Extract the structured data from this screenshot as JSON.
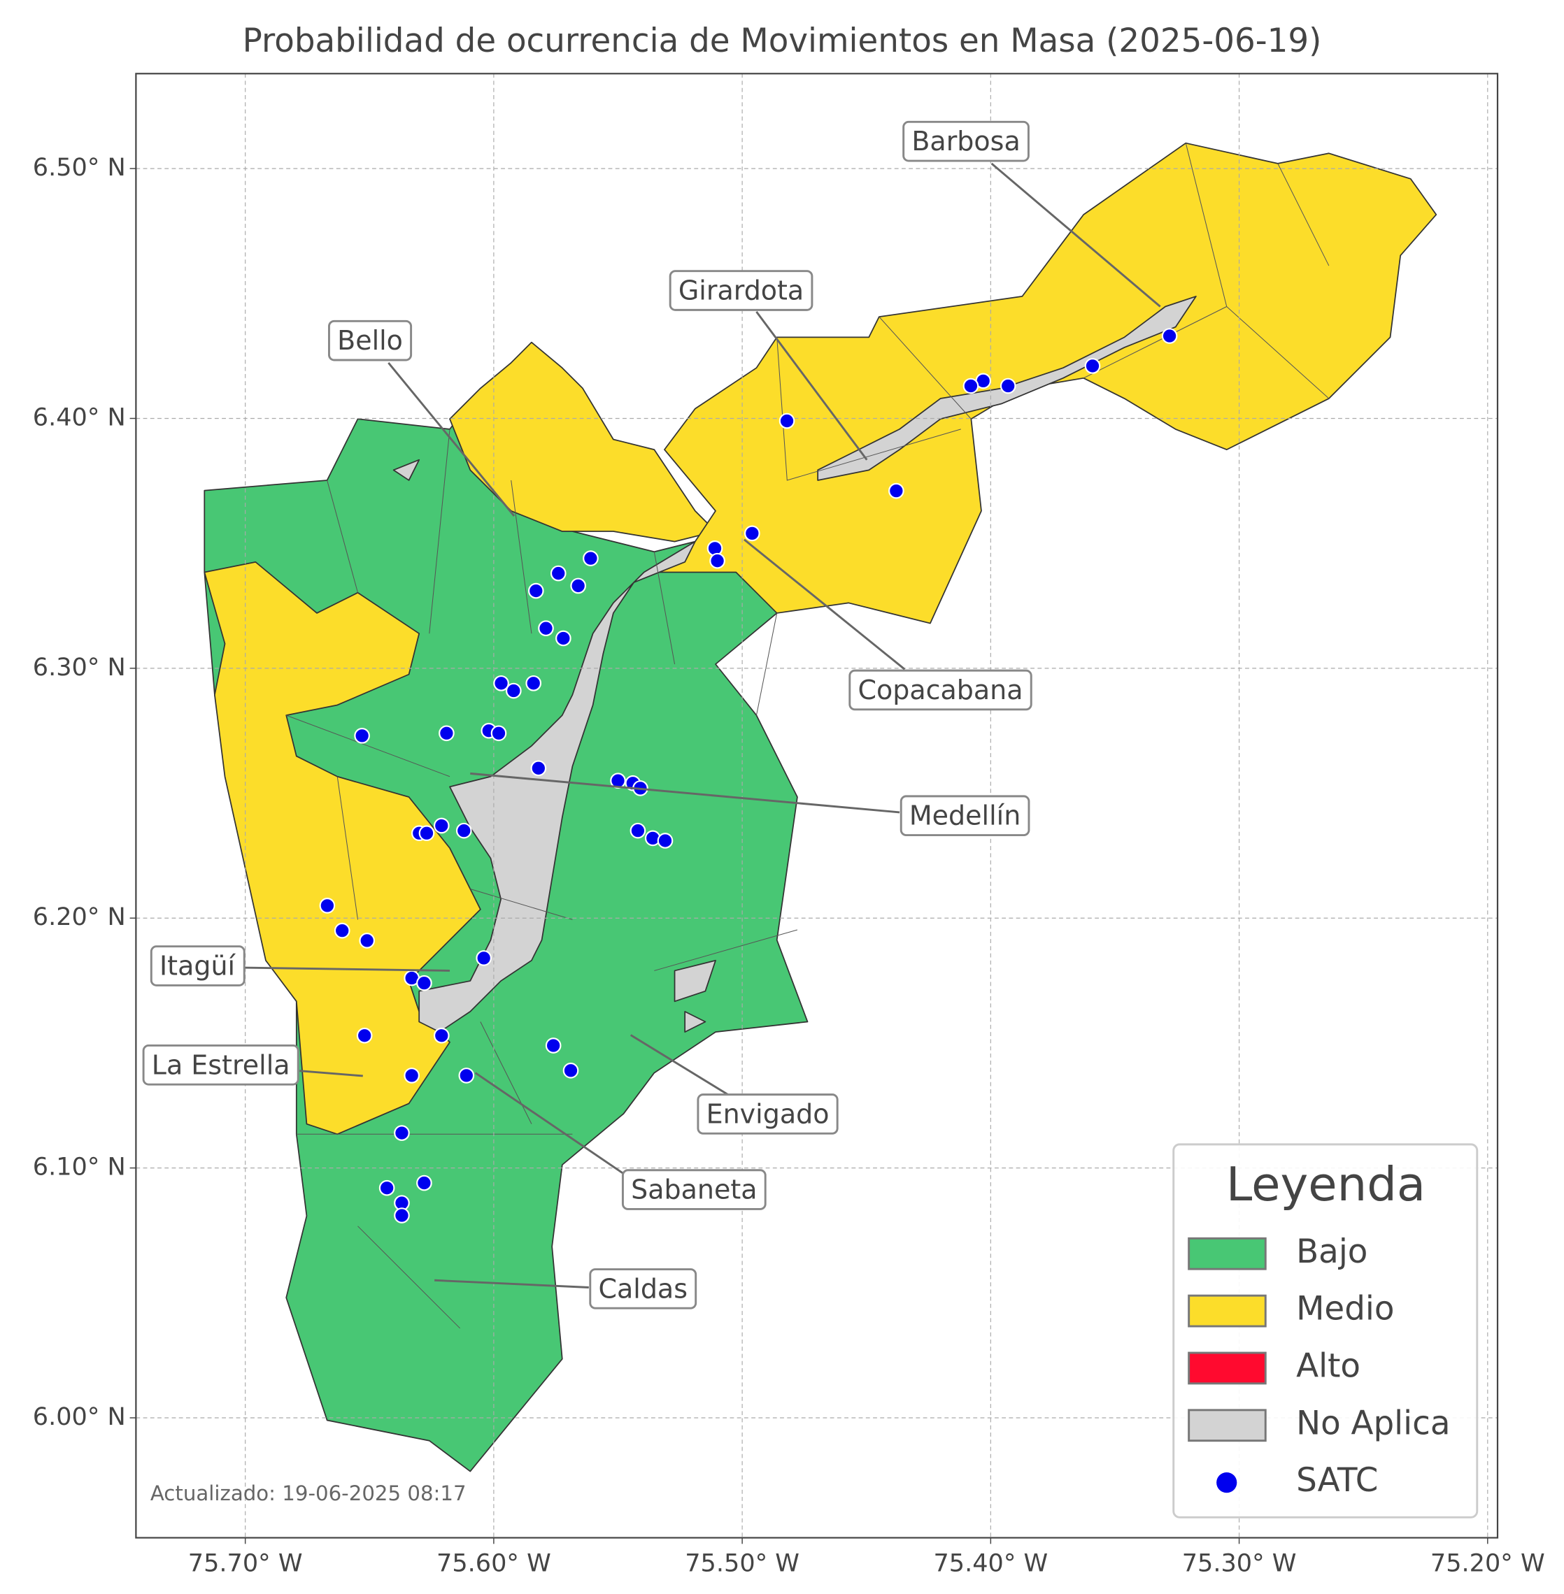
{
  "chart_data": {
    "type": "scatter",
    "title": "Probabilidad de ocurrencia de Movimientos en Masa (2025-06-19)",
    "xlim": [
      -75.744,
      -75.196
    ],
    "ylim": [
      5.952,
      6.538
    ],
    "xticks": [
      {
        "value": -75.7,
        "label": "75.70° W"
      },
      {
        "value": -75.6,
        "label": "75.60° W"
      },
      {
        "value": -75.5,
        "label": "75.50° W"
      },
      {
        "value": -75.4,
        "label": "75.40° W"
      },
      {
        "value": -75.3,
        "label": "75.30° W"
      },
      {
        "value": -75.2,
        "label": "75.20° W"
      }
    ],
    "yticks": [
      {
        "value": 6.0,
        "label": "6.00° N"
      },
      {
        "value": 6.1,
        "label": "6.10° N"
      },
      {
        "value": 6.2,
        "label": "6.20° N"
      },
      {
        "value": 6.3,
        "label": "6.30° N"
      },
      {
        "value": 6.4,
        "label": "6.40° N"
      },
      {
        "value": 6.5,
        "label": "6.50° N"
      }
    ],
    "grid": true,
    "annotations": [
      "Barbosa",
      "Girardota",
      "Bello",
      "Copacabana",
      "Medellín",
      "Itagüí",
      "La Estrella",
      "Envigado",
      "Sabaneta",
      "Caldas"
    ],
    "legend": {
      "title": "Leyenda",
      "corner": "lower right",
      "items": [
        {
          "name": "Bajo",
          "color": "#48c774"
        },
        {
          "name": "Medio",
          "color": "#fcdd2a"
        },
        {
          "name": "Alto",
          "color": "#ff0a2f"
        },
        {
          "name": "No Aplica",
          "color": "#d3d3d3"
        }
      ]
    },
    "stations": {
      "name": "SATC",
      "color": "#0000ee",
      "lon": [
        -75.328,
        -75.359,
        -75.393,
        -75.403,
        -75.408,
        -75.482,
        -75.438,
        -75.496,
        -75.511,
        -75.51,
        -75.561,
        -75.574,
        -75.566,
        -75.583,
        -75.579,
        -75.572,
        -75.597,
        -75.592,
        -75.584,
        -75.653,
        -75.619,
        -75.602,
        -75.598,
        -75.582,
        -75.55,
        -75.544,
        -75.541,
        -75.542,
        -75.536,
        -75.531,
        -75.63,
        -75.627,
        -75.621,
        -75.612,
        -75.667,
        -75.661,
        -75.651,
        -75.604,
        -75.633,
        -75.628,
        -75.652,
        -75.621,
        -75.633,
        -75.611,
        -75.576,
        -75.569,
        -75.637,
        -75.643,
        -75.628,
        -75.637,
        -75.637
      ],
      "lat": [
        6.433,
        6.421,
        6.413,
        6.415,
        6.413,
        6.399,
        6.371,
        6.354,
        6.348,
        6.343,
        6.344,
        6.338,
        6.333,
        6.331,
        6.316,
        6.312,
        6.294,
        6.291,
        6.294,
        6.273,
        6.274,
        6.275,
        6.274,
        6.26,
        6.255,
        6.254,
        6.252,
        6.235,
        6.232,
        6.231,
        6.234,
        6.234,
        6.237,
        6.235,
        6.205,
        6.195,
        6.191,
        6.184,
        6.176,
        6.174,
        6.153,
        6.153,
        6.137,
        6.137,
        6.149,
        6.139,
        6.114,
        6.092,
        6.094,
        6.086,
        6.081
      ]
    },
    "footnote": "Actualizado: 19-06-2025 08:17"
  }
}
